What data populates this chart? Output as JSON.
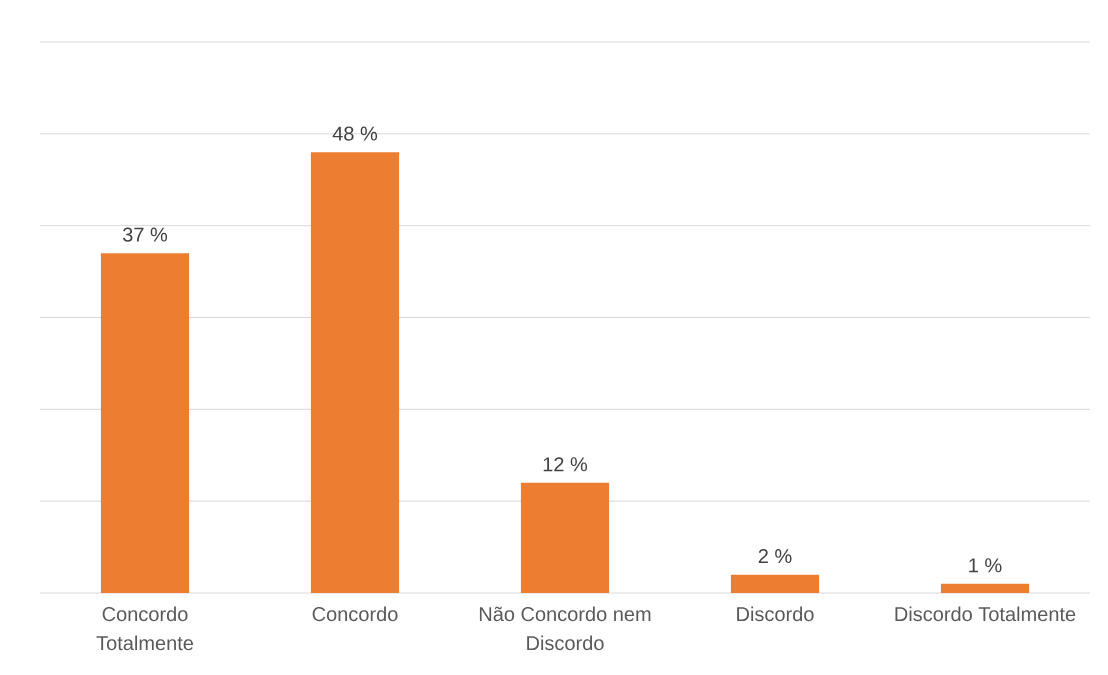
{
  "chart_data": {
    "type": "bar",
    "categories": [
      "Concordo Totalmente",
      "Concordo",
      "Não Concordo nem Discordo",
      "Discordo",
      "Discordo Totalmente"
    ],
    "values": [
      37,
      48,
      12,
      2,
      1
    ],
    "color": "#ed7d31",
    "value_labels": [
      "37 %",
      "48 %",
      "12 %",
      "2 %",
      "1 %"
    ],
    "ylim": [
      0,
      60
    ],
    "yticks": [
      {
        "value": 0,
        "label": null
      },
      {
        "value": 10,
        "label": null
      },
      {
        "value": 20,
        "label": null
      },
      {
        "value": 30,
        "label": null
      },
      {
        "value": 40,
        "label": null
      },
      {
        "value": 50,
        "label": null
      },
      {
        "value": 60,
        "label": null
      }
    ],
    "grid": "y",
    "tick_labels": "x"
  }
}
